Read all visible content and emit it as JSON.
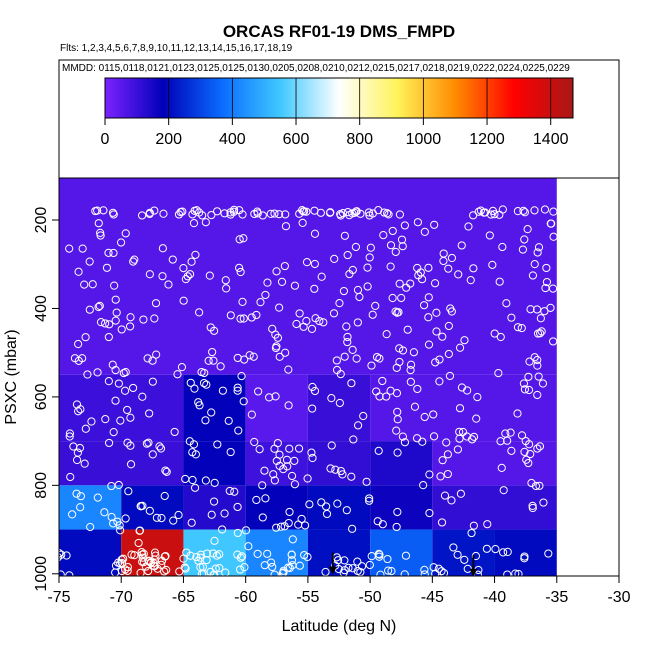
{
  "chart_data": {
    "type": "heatmap",
    "title": "ORCAS RF01-19 DMS_FMPD",
    "flights_note": "Flts: 1,2,3,4,5,6,7,8,9,10,11,12,13,14,15,16,17,18,19",
    "dates_note": "MMDD: 0115,0118,0121,0123,0125,0125,0130,0205,0208,0210,0212,0215,0217,0218,0219,0222,0224,0225,0229",
    "xlabel": "Latitude (deg N)",
    "ylabel": "PSXC (mbar)",
    "xlim": [
      -75,
      -30
    ],
    "ylim": [
      1000,
      100
    ],
    "x_ticks": [
      "-75",
      "-70",
      "-65",
      "-60",
      "-55",
      "-50",
      "-45",
      "-40",
      "-35",
      "-30"
    ],
    "y_ticks": [
      "200",
      "400",
      "600",
      "800",
      "1000"
    ],
    "colorbar": {
      "min": 0,
      "max": 1470,
      "ticks": [
        "0",
        "200",
        "400",
        "600",
        "800",
        "1000",
        "1200",
        "1400"
      ],
      "stops": [
        "#7c22ff",
        "#0000b8",
        "#0a6cff",
        "#40c8ff",
        "#ffffff",
        "#fff35a",
        "#ff8a00",
        "#ff0000",
        "#a81818"
      ]
    },
    "row_edges": [
      100,
      550,
      700,
      800,
      900,
      1000
    ],
    "rows": [
      {
        "p_range": [
          100,
          550
        ],
        "cells": [
          {
            "x": [
              -75,
              -35
            ],
            "v": 60
          }
        ]
      },
      {
        "p_range": [
          550,
          700
        ],
        "cells": [
          {
            "x": [
              -75,
              -65
            ],
            "v": 95
          },
          {
            "x": [
              -65,
              -60
            ],
            "v": 180
          },
          {
            "x": [
              -60,
              -55
            ],
            "v": 50
          },
          {
            "x": [
              -55,
              -50
            ],
            "v": 100
          },
          {
            "x": [
              -50,
              -35
            ],
            "v": 60
          }
        ]
      },
      {
        "p_range": [
          700,
          800
        ],
        "cells": [
          {
            "x": [
              -75,
              -65
            ],
            "v": 100
          },
          {
            "x": [
              -65,
              -60
            ],
            "v": 180
          },
          {
            "x": [
              -60,
              -55
            ],
            "v": 90
          },
          {
            "x": [
              -55,
              -50
            ],
            "v": 110
          },
          {
            "x": [
              -50,
              -45
            ],
            "v": 140
          },
          {
            "x": [
              -45,
              -35
            ],
            "v": 60
          }
        ]
      },
      {
        "p_range": [
          800,
          900
        ],
        "cells": [
          {
            "x": [
              -75,
              -70
            ],
            "v": 420
          },
          {
            "x": [
              -70,
              -65
            ],
            "v": 200
          },
          {
            "x": [
              -65,
              -60
            ],
            "v": 130
          },
          {
            "x": [
              -60,
              -55
            ],
            "v": 180
          },
          {
            "x": [
              -55,
              -50
            ],
            "v": 200
          },
          {
            "x": [
              -50,
              -45
            ],
            "v": 165
          },
          {
            "x": [
              -45,
              -35
            ],
            "v": 110
          }
        ]
      },
      {
        "p_range": [
          900,
          1000
        ],
        "cells": [
          {
            "x": [
              -75,
              -70
            ],
            "v": 200
          },
          {
            "x": [
              -70,
              -65
            ],
            "v": 1400
          },
          {
            "x": [
              -65,
              -60
            ],
            "v": 550
          },
          {
            "x": [
              -60,
              -55
            ],
            "v": 420
          },
          {
            "x": [
              -55,
              -50
            ],
            "v": 210
          },
          {
            "x": [
              -50,
              -45
            ],
            "v": 340
          },
          {
            "x": [
              -45,
              -40
            ],
            "v": 220
          },
          {
            "x": [
              -40,
              -35
            ],
            "v": 200
          }
        ]
      }
    ],
    "arrows": [
      {
        "lat": -53.0,
        "p": 995
      },
      {
        "lat": -41.7,
        "p": 1000
      }
    ]
  }
}
